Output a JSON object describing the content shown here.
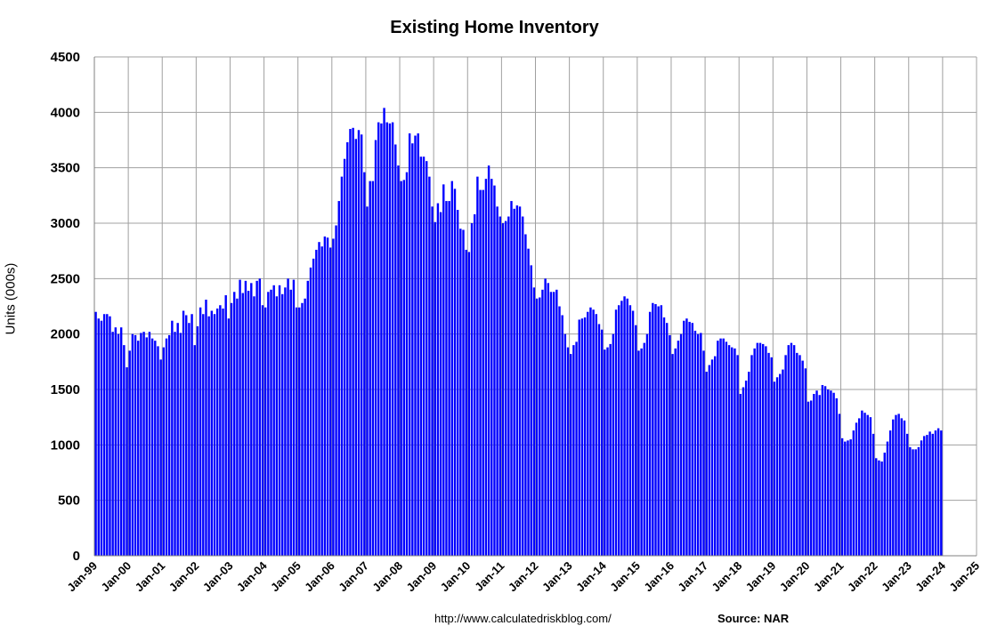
{
  "chart_data": {
    "type": "bar",
    "title": "Existing Home Inventory",
    "xlabel": "",
    "ylabel": "Units (000s)",
    "ylim": [
      0,
      4500
    ],
    "yticks": [
      0,
      500,
      1000,
      1500,
      2000,
      2500,
      3000,
      3500,
      4000,
      4500
    ],
    "xticks": [
      "Jan-99",
      "Jan-00",
      "Jan-01",
      "Jan-02",
      "Jan-03",
      "Jan-04",
      "Jan-05",
      "Jan-06",
      "Jan-07",
      "Jan-08",
      "Jan-09",
      "Jan-10",
      "Jan-11",
      "Jan-12",
      "Jan-13",
      "Jan-14",
      "Jan-15",
      "Jan-16",
      "Jan-17",
      "Jan-18",
      "Jan-19",
      "Jan-20",
      "Jan-21",
      "Jan-22",
      "Jan-23",
      "Jan-24",
      "Jan-25"
    ],
    "grid": true,
    "bar_color": "#0000ff",
    "start_month": "1999-01",
    "values": [
      2200,
      2140,
      2120,
      2180,
      2180,
      2160,
      2020,
      2060,
      2000,
      2060,
      1900,
      1700,
      1850,
      2000,
      1990,
      1940,
      2010,
      2020,
      1970,
      2020,
      1960,
      1940,
      1890,
      1770,
      1880,
      1960,
      1990,
      2120,
      2020,
      2100,
      2010,
      2210,
      2170,
      2100,
      2180,
      1900,
      2070,
      2240,
      2180,
      2310,
      2160,
      2210,
      2180,
      2230,
      2260,
      2230,
      2350,
      2140,
      2280,
      2380,
      2320,
      2490,
      2370,
      2480,
      2390,
      2460,
      2340,
      2480,
      2500,
      2260,
      2240,
      2380,
      2400,
      2440,
      2340,
      2440,
      2360,
      2420,
      2500,
      2400,
      2490,
      2240,
      2240,
      2280,
      2320,
      2480,
      2600,
      2680,
      2760,
      2830,
      2790,
      2880,
      2870,
      2780,
      2860,
      2980,
      3200,
      3420,
      3580,
      3730,
      3850,
      3860,
      3760,
      3840,
      3800,
      3460,
      3150,
      3380,
      3380,
      3750,
      3910,
      3900,
      4040,
      3910,
      3900,
      3910,
      3710,
      3520,
      3380,
      3390,
      3460,
      3810,
      3720,
      3790,
      3810,
      3600,
      3600,
      3560,
      3420,
      3150,
      3010,
      3180,
      3100,
      3350,
      3200,
      3200,
      3380,
      3310,
      3120,
      2950,
      2940,
      2760,
      2740,
      3000,
      3080,
      3420,
      3300,
      3300,
      3400,
      3520,
      3400,
      3340,
      3150,
      3060,
      3000,
      3020,
      3060,
      3200,
      3130,
      3160,
      3150,
      3060,
      2900,
      2770,
      2620,
      2420,
      2320,
      2330,
      2400,
      2500,
      2460,
      2380,
      2380,
      2400,
      2250,
      2170,
      2000,
      1880,
      1820,
      1900,
      1930,
      2130,
      2140,
      2150,
      2200,
      2240,
      2220,
      2180,
      2090,
      2040,
      1860,
      1880,
      1910,
      2000,
      2220,
      2260,
      2300,
      2340,
      2320,
      2260,
      2210,
      2080,
      1850,
      1870,
      1920,
      2000,
      2200,
      2280,
      2270,
      2250,
      2260,
      2150,
      2100,
      1990,
      1820,
      1870,
      1940,
      2000,
      2120,
      2140,
      2110,
      2100,
      2030,
      2000,
      2010,
      1850,
      1660,
      1720,
      1770,
      1800,
      1940,
      1960,
      1960,
      1930,
      1900,
      1880,
      1870,
      1810,
      1460,
      1520,
      1580,
      1660,
      1810,
      1870,
      1920,
      1920,
      1910,
      1890,
      1830,
      1790,
      1570,
      1610,
      1640,
      1680,
      1810,
      1900,
      1920,
      1900,
      1830,
      1810,
      1760,
      1690,
      1390,
      1400,
      1460,
      1490,
      1450,
      1540,
      1530,
      1500,
      1490,
      1470,
      1420,
      1280,
      1060,
      1030,
      1040,
      1050,
      1130,
      1200,
      1240,
      1310,
      1290,
      1270,
      1250,
      1100,
      880,
      860,
      850,
      930,
      1030,
      1130,
      1230,
      1270,
      1280,
      1240,
      1220,
      1100,
      980,
      960,
      960,
      980,
      1040,
      1080,
      1090,
      1120,
      1100,
      1130,
      1150,
      1130
    ]
  },
  "footer": {
    "url": "http://www.calculatedriskblog.com/",
    "source": "Source: NAR"
  }
}
